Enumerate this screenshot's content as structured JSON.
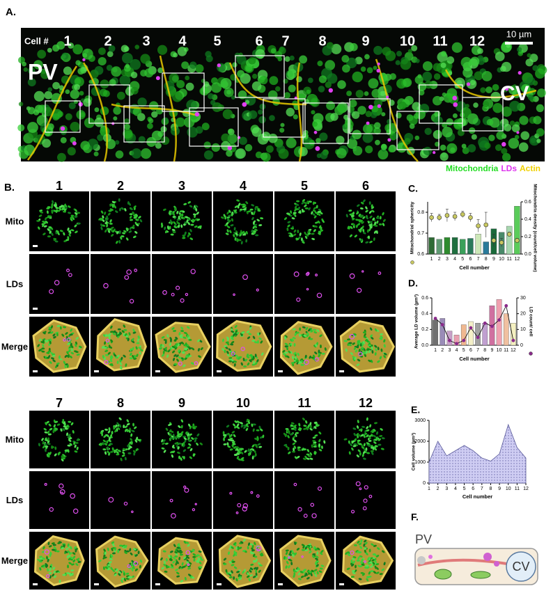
{
  "panel_a": {
    "label": "A.",
    "cell_label": "Cell #",
    "cells": [
      "1",
      "2",
      "3",
      "4",
      "5",
      "6",
      "7",
      "8",
      "9",
      "10",
      "11",
      "12"
    ],
    "scale_bar": "10 µm",
    "pv": "PV",
    "cv": "CV",
    "legend": [
      {
        "name": "Mitochondria",
        "color": "#22dd22"
      },
      {
        "name": "LDs",
        "color": "#dd33ee"
      },
      {
        "name": "Actin",
        "color": "#f0d000"
      }
    ]
  },
  "panel_b": {
    "label": "B.",
    "rows": [
      "Mito",
      "LDs",
      "Merge"
    ],
    "cells": [
      "1",
      "2",
      "3",
      "4",
      "5",
      "6",
      "7",
      "8",
      "9",
      "10",
      "11",
      "12"
    ]
  },
  "chart_data": [
    {
      "type": "combo",
      "panel_label": "C.",
      "xlabel": "Cell number",
      "categories": [
        "1",
        "2",
        "3",
        "4",
        "5",
        "6",
        "7",
        "8",
        "9",
        "10",
        "11",
        "12"
      ],
      "ylim": [
        0.6,
        0.85
      ],
      "yticks": [
        0.6,
        0.7,
        0.8
      ],
      "y2lim": [
        0,
        0.6
      ],
      "y2ticks": [
        {
          "value": 0,
          "label": "0.0"
        },
        0.2,
        0.4,
        0.6
      ],
      "series": [
        {
          "name": "Mitochondria density (count/cell volume)",
          "kind": "bar",
          "axis": "y2",
          "colors": [
            "#2f6b35",
            "#5f9a72",
            "#2e8b2e",
            "#1f6f3f",
            "#3aa05a",
            "#2a7a5a",
            "#cde8b8",
            "#2a7a9a",
            "#1a6a3a",
            "#4a8a6a",
            "#a8d8b0",
            "#5acc5a"
          ],
          "values": [
            0.19,
            0.17,
            0.19,
            0.19,
            0.17,
            0.18,
            0.23,
            0.14,
            0.29,
            0.25,
            0.32,
            0.55
          ]
        },
        {
          "name": "Mitochondrial sphericity",
          "kind": "scatter",
          "axis": "y",
          "color": "#c8c860",
          "values": [
            0.775,
            0.775,
            0.785,
            0.78,
            0.79,
            0.775,
            0.735,
            0.74,
            0.665,
            0.655,
            0.695,
            0.665
          ],
          "errors": [
            0.02,
            0.015,
            0.03,
            0.02,
            0.015,
            0.02,
            0.03,
            0.06,
            0.03,
            0.02,
            0.01,
            0.01
          ]
        }
      ]
    },
    {
      "type": "combo",
      "panel_label": "D.",
      "xlabel": "Cell number",
      "categories": [
        "1",
        "2",
        "3",
        "4",
        "5",
        "6",
        "7",
        "8",
        "9",
        "10",
        "11",
        "12"
      ],
      "ylim": [
        0,
        0.6
      ],
      "yticks": [
        {
          "value": 0,
          "label": "0.0"
        },
        0.2,
        0.4,
        0.6
      ],
      "y2lim": [
        0,
        30
      ],
      "y2ticks": [
        0,
        10,
        20,
        30
      ],
      "series": [
        {
          "name": "Average LD volume (µm³)",
          "kind": "bar",
          "axis": "y",
          "colors": [
            "#707070",
            "#9a8cb8",
            "#c8a0c8",
            "#e8a0b0",
            "#f0b890",
            "#f4f0c8",
            "#a0a0a0",
            "#c0a0d0",
            "#d070a0",
            "#f0a0b0",
            "#f0c0a0",
            "#f4f0c0"
          ],
          "values": [
            0.32,
            0.34,
            0.18,
            0.13,
            0.26,
            0.3,
            0.28,
            0.28,
            0.5,
            0.58,
            0.4,
            0.28
          ]
        },
        {
          "name": "LD count/ cell",
          "kind": "line",
          "axis": "y2",
          "color": "#8a2a8a",
          "values": [
            17,
            13,
            3,
            1,
            3,
            11,
            5,
            14,
            12,
            16,
            25,
            3
          ]
        }
      ]
    },
    {
      "type": "area",
      "panel_label": "E.",
      "xlabel": "Cell number",
      "x": [
        1,
        2,
        3,
        4,
        5,
        6,
        7,
        8,
        9,
        10,
        11,
        12
      ],
      "xlim": [
        1,
        12
      ],
      "xticks": [
        1,
        2,
        3,
        4,
        5,
        6,
        7,
        8,
        9,
        10,
        11,
        12
      ],
      "ylim": [
        0,
        3000
      ],
      "yticks": [
        0,
        1000,
        2000,
        3000
      ],
      "series": [
        {
          "name": "Cell volume (µm³)",
          "color": "#c9c8f2",
          "values": [
            1000,
            2000,
            1300,
            1550,
            1800,
            1550,
            1200,
            1050,
            1400,
            2800,
            1700,
            1200
          ]
        }
      ]
    }
  ],
  "panel_f": {
    "label": "F.",
    "pv": "PV",
    "cv": "CV"
  }
}
